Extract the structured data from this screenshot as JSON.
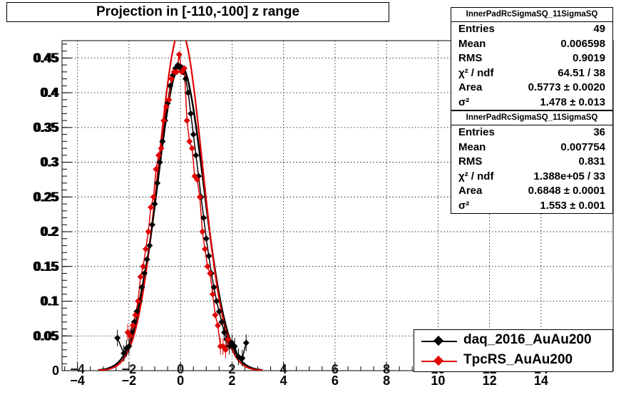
{
  "title": "Projection in [-110,-100] z range",
  "stats": [
    {
      "name": "InnerPadRcSigmaSQ_11SigmaSQ",
      "rows": [
        {
          "label": "Entries",
          "value": "49"
        },
        {
          "label": "Mean",
          "value": "0.006598"
        },
        {
          "label": "RMS",
          "value": "0.9019"
        },
        {
          "label": "χ² / ndf",
          "value": "64.51 / 38"
        },
        {
          "label": "Area",
          "value": "0.5773 ± 0.0020"
        },
        {
          "label": "σ²",
          "value": "1.478 ± 0.013"
        }
      ]
    },
    {
      "name": "InnerPadRcSigmaSQ_11SigmaSQ",
      "rows": [
        {
          "label": "Entries",
          "value": "36"
        },
        {
          "label": "Mean",
          "value": "0.007754"
        },
        {
          "label": "RMS",
          "value": "0.831"
        },
        {
          "label": "χ² / ndf",
          "value": "1.388e+05 / 33"
        },
        {
          "label": "Area",
          "value": "0.6848 ± 0.0001"
        },
        {
          "label": "σ²",
          "value": "1.553 ± 0.001"
        }
      ]
    }
  ],
  "legend": [
    {
      "name": "daq_2016_AuAu200",
      "color": "#000000"
    },
    {
      "name": "TpcRS_AuAu200",
      "color": "#e00000"
    }
  ],
  "chart_data": {
    "type": "scatter",
    "title": "Projection in [-110,-100] z range",
    "xlabel": "",
    "ylabel": "",
    "xlim": [
      -4.6,
      16.8
    ],
    "ylim": [
      0,
      0.475
    ],
    "x_ticks": [
      -4,
      -2,
      0,
      2,
      4,
      6,
      8,
      10,
      12,
      14
    ],
    "y_ticks": [
      0,
      0.05,
      0.1,
      0.15,
      0.2,
      0.25,
      0.3,
      0.35,
      0.4,
      0.45
    ],
    "y_tick_labels": [
      "0",
      "0.05",
      "0.1",
      "0.15",
      "0.2",
      "0.25",
      "0.3",
      "0.35",
      "0.4",
      "0.45"
    ],
    "grid": true,
    "legend_position": "bottom-right",
    "series": [
      {
        "name": "daq_2016_AuAu200",
        "color": "#000000",
        "x": [
          -2.45,
          -2.2,
          -2.1,
          -2.0,
          -1.9,
          -1.8,
          -1.7,
          -1.6,
          -1.5,
          -1.4,
          -1.3,
          -1.2,
          -1.1,
          -1.0,
          -0.9,
          -0.8,
          -0.7,
          -0.6,
          -0.5,
          -0.4,
          -0.3,
          -0.2,
          -0.1,
          0.0,
          0.1,
          0.2,
          0.3,
          0.4,
          0.5,
          0.6,
          0.7,
          0.8,
          0.9,
          1.0,
          1.1,
          1.2,
          1.3,
          1.4,
          1.5,
          1.6,
          1.7,
          1.8,
          1.9,
          2.0,
          2.1,
          2.25,
          2.4,
          2.55
        ],
        "y": [
          0.047,
          0.025,
          0.032,
          0.035,
          0.055,
          0.07,
          0.085,
          0.1,
          0.12,
          0.14,
          0.16,
          0.18,
          0.21,
          0.24,
          0.27,
          0.3,
          0.33,
          0.36,
          0.385,
          0.41,
          0.425,
          0.435,
          0.44,
          0.435,
          0.43,
          0.42,
          0.4,
          0.37,
          0.34,
          0.31,
          0.28,
          0.25,
          0.22,
          0.19,
          0.165,
          0.14,
          0.12,
          0.1,
          0.085,
          0.07,
          0.055,
          0.045,
          0.035,
          0.04,
          0.035,
          0.02,
          0.018,
          0.04
        ],
        "fit": {
          "mean": 0.0,
          "sigma": 0.9,
          "amplitude": 0.44
        }
      },
      {
        "name": "TpcRS_AuAu200",
        "color": "#e00000",
        "x": [
          -2.05,
          -1.95,
          -1.85,
          -1.75,
          -1.65,
          -1.55,
          -1.45,
          -1.35,
          -1.25,
          -1.15,
          -1.05,
          -0.95,
          -0.85,
          -0.75,
          -0.65,
          -0.55,
          -0.45,
          -0.35,
          -0.25,
          -0.15,
          -0.05,
          0.05,
          0.15,
          0.25,
          0.35,
          0.45,
          0.55,
          0.65,
          0.75,
          0.85,
          0.95,
          1.05,
          1.15,
          1.25,
          1.35,
          1.45,
          1.55,
          1.65,
          1.75,
          1.85
        ],
        "y": [
          0.055,
          0.05,
          0.065,
          0.08,
          0.1,
          0.135,
          0.15,
          0.175,
          0.2,
          0.235,
          0.25,
          0.29,
          0.31,
          0.32,
          0.36,
          0.38,
          0.39,
          0.42,
          0.43,
          0.43,
          0.455,
          0.43,
          0.435,
          0.36,
          0.33,
          0.32,
          0.28,
          0.275,
          0.25,
          0.2,
          0.175,
          0.15,
          0.14,
          0.11,
          0.08,
          0.065,
          0.035,
          0.035,
          0.03,
          0.045
        ],
        "fit": {
          "mean": 0.0,
          "sigma": 0.85,
          "amplitude": 0.49
        }
      }
    ]
  }
}
